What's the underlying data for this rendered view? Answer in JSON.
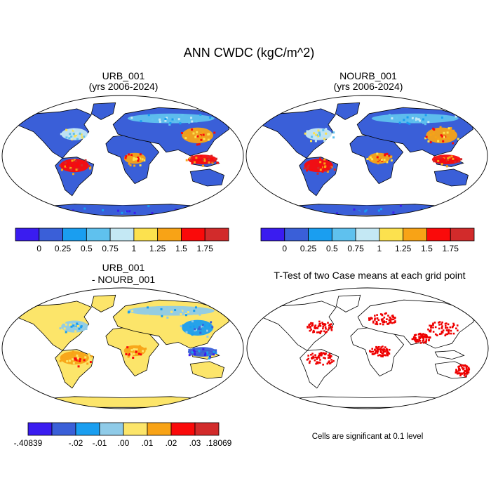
{
  "figure_title": "ANN CWDC (kgC/m^2)",
  "colors": {
    "ocean": "#ffffff",
    "outline": "#000000",
    "signif": "#ee0000"
  },
  "chart_data": [
    {
      "type": "heatmap",
      "title": "URB_001",
      "subtitle": "(yrs 2006-2024)",
      "colorbar": {
        "colors": [
          "#3a1cf0",
          "#3a5fd8",
          "#1a9ef0",
          "#5fc1ee",
          "#c4e8f4",
          "#fce14e",
          "#f8a316",
          "#fa0a0a",
          "#d22b2b"
        ],
        "tick_labels": [
          "0",
          "0.25",
          "0.5",
          "0.75",
          "1",
          "1.25",
          "1.5",
          "1.75"
        ]
      },
      "data": {
        "levels": [
          0,
          0.25,
          0.5,
          0.75,
          1,
          1.25,
          1.5,
          1.75
        ],
        "background_class": 1,
        "regions": [
          {
            "name": "Amazon",
            "class": 7
          },
          {
            "name": "Central Africa",
            "class": 6
          },
          {
            "name": "Southeast Asia",
            "class": 7
          },
          {
            "name": "East Asia",
            "class": 6
          },
          {
            "name": "Eastern North America",
            "class": 4
          },
          {
            "name": "Eurasian boreal",
            "class": 3
          },
          {
            "name": "Antarctica",
            "class": 1
          }
        ]
      }
    },
    {
      "type": "heatmap",
      "title": "NOURB_001",
      "subtitle": "(yrs 2006-2024)",
      "colorbar": {
        "colors": [
          "#3a1cf0",
          "#3a5fd8",
          "#1a9ef0",
          "#5fc1ee",
          "#c4e8f4",
          "#fce14e",
          "#f8a316",
          "#fa0a0a",
          "#d22b2b"
        ],
        "tick_labels": [
          "0",
          "0.25",
          "0.5",
          "0.75",
          "1",
          "1.25",
          "1.5",
          "1.75"
        ]
      },
      "data": {
        "levels": [
          0,
          0.25,
          0.5,
          0.75,
          1,
          1.25,
          1.5,
          1.75
        ],
        "background_class": 1,
        "regions": [
          {
            "name": "Amazon",
            "class": 7
          },
          {
            "name": "Central Africa",
            "class": 6
          },
          {
            "name": "Southeast Asia",
            "class": 7
          },
          {
            "name": "East Asia",
            "class": 6
          },
          {
            "name": "Eastern North America",
            "class": 4
          },
          {
            "name": "Eurasian boreal",
            "class": 3
          },
          {
            "name": "Antarctica",
            "class": 1
          }
        ]
      }
    },
    {
      "type": "heatmap",
      "title": "URB_001",
      "subtitle": "- NOURB_001",
      "colorbar": {
        "colors": [
          "#3a1cf0",
          "#3a5fd8",
          "#1a9ef0",
          "#8fcbe8",
          "#fce56a",
          "#f8a316",
          "#fa0a0a",
          "#d22b2b"
        ],
        "tick_labels": [
          "-.40839",
          "-.02",
          "-.01",
          ".00",
          ".01",
          ".02",
          ".03",
          ".18069"
        ]
      },
      "data": {
        "levels": [
          -0.40839,
          -0.02,
          -0.01,
          0.0,
          0.01,
          0.02,
          0.03,
          0.18069
        ],
        "background_class": 4,
        "regions": [
          {
            "name": "Amazon",
            "class": 5
          },
          {
            "name": "Central Africa",
            "class": 5
          },
          {
            "name": "Eastern North America",
            "class": 3
          },
          {
            "name": "Eurasian boreal",
            "class": 3
          },
          {
            "name": "East Asia",
            "class": 2
          },
          {
            "name": "Southeast Asia",
            "class": 1
          }
        ]
      }
    },
    {
      "type": "heatmap",
      "title": "T-Test of two Case means at each grid point",
      "note": "Cells are significant at 0.1 level",
      "data": {
        "significance_level": 0.1,
        "significant_regions": [
          "Eastern North America",
          "Europe",
          "East Asia",
          "South Asia",
          "Central Africa",
          "Amazon",
          "Eastern Australia"
        ]
      }
    }
  ]
}
